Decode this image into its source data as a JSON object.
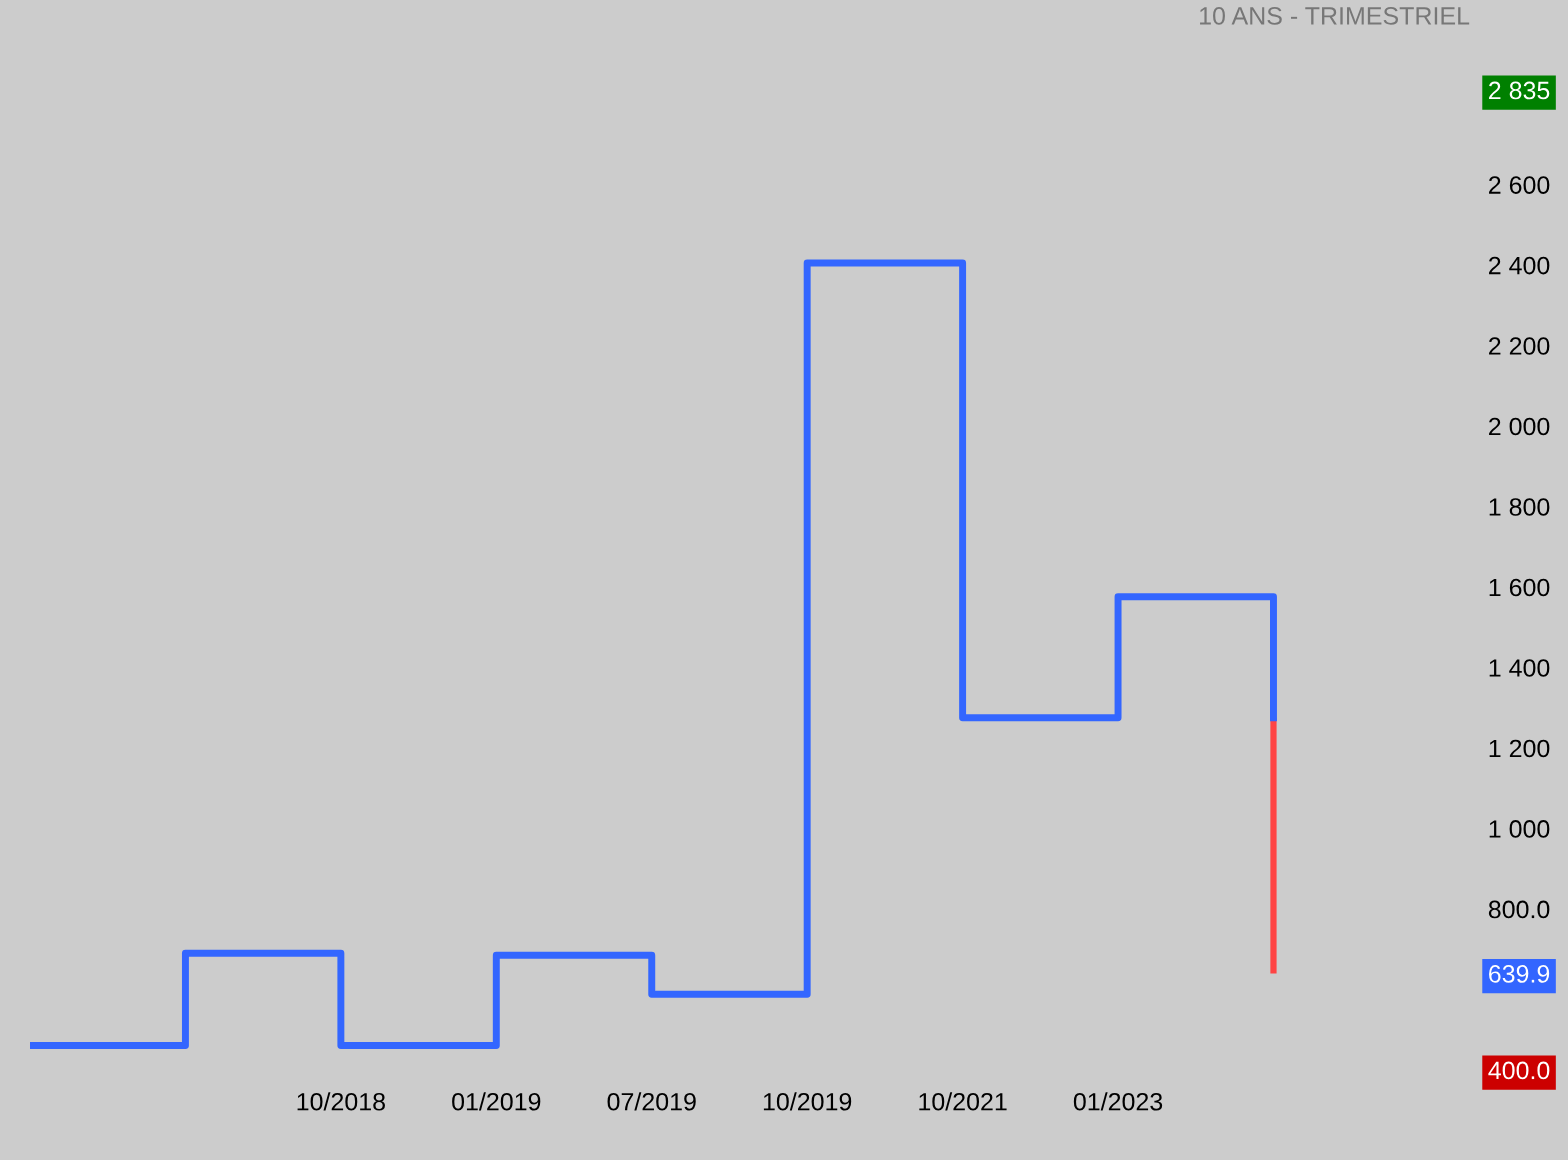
{
  "chart_data": {
    "type": "step",
    "subtitle": "10 ANS - TRIMESTRIEL",
    "categories": [
      null,
      null,
      "10/2018",
      "01/2019",
      "07/2019",
      "10/2019",
      "10/2021",
      "01/2023",
      null
    ],
    "series": [
      {
        "color": "#3366ff",
        "values": [
          461,
          690,
          461,
          685,
          588,
          2405,
          1275,
          1576,
          1275
        ]
      },
      {
        "type": "bar",
        "color": "#ff4444",
        "values": [
          null,
          null,
          null,
          null,
          null,
          null,
          null,
          null,
          635.1
        ],
        "base": [
          null,
          null,
          null,
          null,
          null,
          null,
          null,
          null,
          639.9
        ]
      }
    ],
    "ylim": [
      400,
      2835
    ],
    "yticks": [
      {
        "value": 400,
        "label": "400.0"
      },
      {
        "value": 639.9,
        "label": "639.9"
      },
      {
        "value": 800,
        "label": "800.0"
      },
      {
        "value": 1000,
        "label": "1 000"
      },
      {
        "value": 1200,
        "label": "1 200"
      },
      {
        "value": 1400,
        "label": "1 400"
      },
      {
        "value": 1600,
        "label": "1 600"
      },
      {
        "value": 1800,
        "label": "1 800"
      },
      {
        "value": 2000,
        "label": "2 000"
      },
      {
        "value": 2200,
        "label": "2 200"
      },
      {
        "value": 2400,
        "label": "2 400"
      },
      {
        "value": 2600,
        "label": "2 600"
      },
      {
        "value": 2835,
        "label": "2 835"
      }
    ],
    "grid": false
  }
}
